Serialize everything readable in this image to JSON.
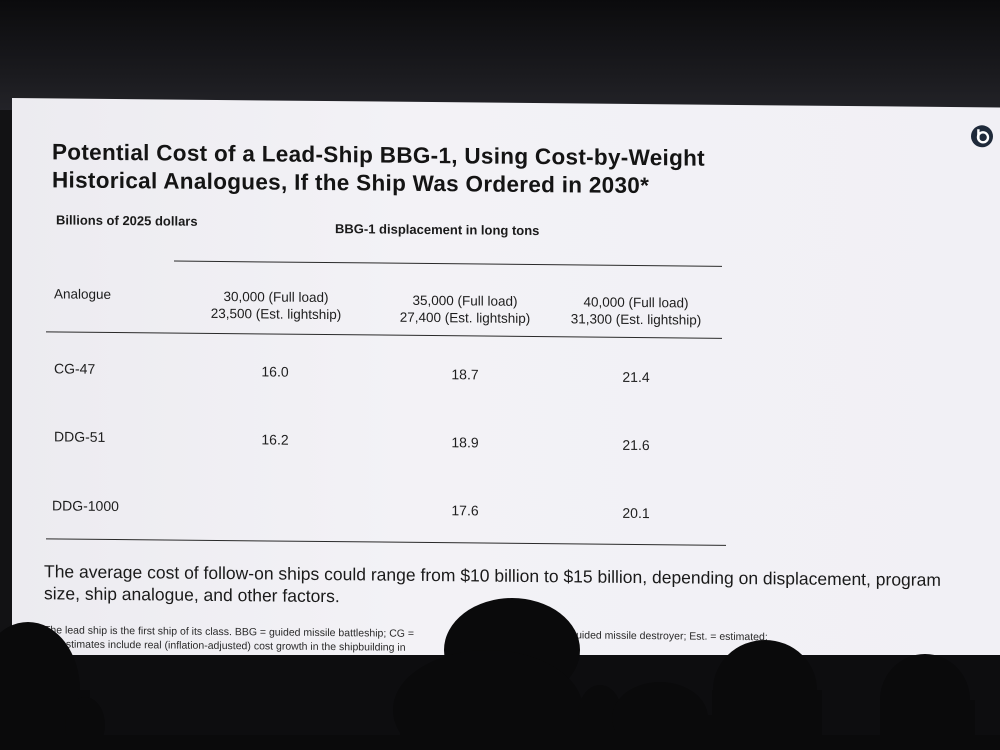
{
  "slide": {
    "title_line1": "Potential Cost of a Lead-Ship BBG-1, Using Cost-by-Weight",
    "title_line2": "Historical Analogues, If the Ship Was Ordered in 2030*",
    "units_label": "Billions of 2025 dollars",
    "displacement_header": "BBG-1 displacement in long tons",
    "table": {
      "columns": [
        {
          "line1": "Analogue",
          "line2": ""
        },
        {
          "line1": "30,000 (Full load)",
          "line2": "23,500 (Est. lightship)"
        },
        {
          "line1": "35,000 (Full load)",
          "line2": "27,400 (Est. lightship)"
        },
        {
          "line1": "40,000 (Full load)",
          "line2": "31,300 (Est. lightship)"
        }
      ],
      "rows": [
        {
          "analogue": "CG-47",
          "values": [
            "16.0",
            "18.7",
            "21.4"
          ]
        },
        {
          "analogue": "DDG-51",
          "values": [
            "16.2",
            "18.9",
            "21.6"
          ]
        },
        {
          "analogue": "DDG-1000",
          "values": [
            "",
            "17.6",
            "20.1"
          ]
        }
      ]
    },
    "summary": "The average cost of follow-on ships could range from $10 billion to $15 billion, depending on displacement, program size, ship analogue, and other factors.",
    "footnote_line1_left": "The lead ship is the first ship of its class. BBG = guided missile battleship; CG =",
    "footnote_line1_right": "DDG = guided missile destroyer; Est. = estimated;",
    "footnote_line2": "* = estimates include real (inflation-adjusted) cost growth in the shipbuilding in"
  },
  "colors": {
    "screen": "#f1f0f5",
    "text": "#141414",
    "room": "#121214"
  }
}
